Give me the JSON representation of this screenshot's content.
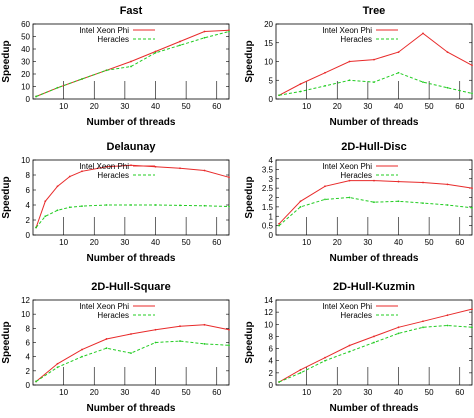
{
  "colors": {
    "intel": "#e82a2a",
    "heracles": "#22cc22",
    "axis": "#000000",
    "grid": "#000000"
  },
  "chart_data": [
    {
      "type": "line",
      "title": "Fast",
      "xlabel": "Number of threads",
      "ylabel": "Speedup",
      "xlim": [
        0,
        64
      ],
      "ylim": [
        0,
        60
      ],
      "xticks": [
        10,
        20,
        30,
        40,
        50,
        60
      ],
      "yticks": [
        0,
        10,
        20,
        30,
        40,
        50,
        60
      ],
      "grid": false,
      "legend": "top-left",
      "series": [
        {
          "name": "Intel Xeon Phi",
          "color": "#e82a2a",
          "x": [
            1,
            8,
            16,
            24,
            32,
            40,
            48,
            56,
            64
          ],
          "y": [
            2,
            9,
            16,
            23,
            30,
            38,
            46,
            54,
            55
          ]
        },
        {
          "name": "Heracles",
          "color": "#22cc22",
          "x": [
            1,
            8,
            16,
            24,
            32,
            40,
            48,
            56,
            64
          ],
          "y": [
            2,
            9,
            16,
            23,
            26,
            37,
            43,
            49,
            54
          ]
        }
      ]
    },
    {
      "type": "line",
      "title": "Tree",
      "xlabel": "Number of threads",
      "ylabel": "Speedup",
      "xlim": [
        0,
        64
      ],
      "ylim": [
        0,
        20
      ],
      "xticks": [
        10,
        20,
        30,
        40,
        50,
        60
      ],
      "yticks": [
        0,
        5,
        10,
        15,
        20
      ],
      "grid": false,
      "legend": "top-left",
      "series": [
        {
          "name": "Intel Xeon Phi",
          "color": "#e82a2a",
          "x": [
            1,
            8,
            16,
            24,
            32,
            40,
            48,
            56,
            64
          ],
          "y": [
            1,
            4,
            7,
            10,
            10.5,
            12.5,
            17.5,
            12.5,
            9
          ]
        },
        {
          "name": "Heracles",
          "color": "#22cc22",
          "x": [
            1,
            8,
            16,
            24,
            32,
            40,
            48,
            56,
            64
          ],
          "y": [
            1,
            2,
            3.5,
            5,
            4.5,
            7,
            4.5,
            3,
            1.5
          ]
        }
      ]
    },
    {
      "type": "line",
      "title": "Delaunay",
      "xlabel": "Number of threads",
      "ylabel": "Speedup",
      "xlim": [
        0,
        64
      ],
      "ylim": [
        0,
        10
      ],
      "xticks": [
        10,
        20,
        30,
        40,
        50,
        60
      ],
      "yticks": [
        0,
        2,
        4,
        6,
        8,
        10
      ],
      "grid": false,
      "legend": "top-left",
      "series": [
        {
          "name": "Intel Xeon Phi",
          "color": "#e82a2a",
          "x": [
            1,
            4,
            8,
            12,
            16,
            24,
            32,
            40,
            48,
            56,
            64
          ],
          "y": [
            1,
            4.5,
            6.5,
            7.8,
            8.5,
            9.1,
            9.3,
            9.1,
            8.9,
            8.6,
            7.7
          ]
        },
        {
          "name": "Heracles",
          "color": "#22cc22",
          "x": [
            1,
            4,
            8,
            12,
            16,
            24,
            32,
            40,
            48,
            56,
            64
          ],
          "y": [
            1,
            2.5,
            3.3,
            3.7,
            3.85,
            4,
            4,
            4,
            3.95,
            3.9,
            3.8
          ]
        }
      ]
    },
    {
      "type": "line",
      "title": "2D-Hull-Disc",
      "xlabel": "Number of threads",
      "ylabel": "Speedup",
      "xlim": [
        0,
        64
      ],
      "ylim": [
        0,
        4
      ],
      "xticks": [
        10,
        20,
        30,
        40,
        50,
        60
      ],
      "yticks": [
        0,
        0.5,
        1,
        1.5,
        2,
        2.5,
        3,
        3.5,
        4
      ],
      "grid": false,
      "legend": "top-left",
      "series": [
        {
          "name": "Intel Xeon Phi",
          "color": "#e82a2a",
          "x": [
            1,
            8,
            16,
            24,
            32,
            40,
            48,
            56,
            64
          ],
          "y": [
            0.6,
            1.8,
            2.6,
            2.9,
            2.9,
            2.85,
            2.8,
            2.7,
            2.5
          ]
        },
        {
          "name": "Heracles",
          "color": "#22cc22",
          "x": [
            1,
            8,
            16,
            24,
            32,
            40,
            48,
            56,
            64
          ],
          "y": [
            0.5,
            1.5,
            1.9,
            2,
            1.75,
            1.8,
            1.7,
            1.6,
            1.45
          ]
        }
      ]
    },
    {
      "type": "line",
      "title": "2D-Hull-Square",
      "xlabel": "Number of threads",
      "ylabel": "Speedup",
      "xlim": [
        0,
        64
      ],
      "ylim": [
        0,
        12
      ],
      "xticks": [
        10,
        20,
        30,
        40,
        50,
        60
      ],
      "yticks": [
        0,
        2,
        4,
        6,
        8,
        10,
        12
      ],
      "grid": false,
      "legend": "top-left",
      "series": [
        {
          "name": "Intel Xeon Phi",
          "color": "#e82a2a",
          "x": [
            1,
            8,
            16,
            24,
            32,
            40,
            48,
            56,
            64
          ],
          "y": [
            0.5,
            3,
            5,
            6.5,
            7.2,
            7.8,
            8.3,
            8.5,
            7.8
          ]
        },
        {
          "name": "Heracles",
          "color": "#22cc22",
          "x": [
            1,
            8,
            16,
            24,
            32,
            40,
            48,
            56,
            64
          ],
          "y": [
            0.5,
            2.5,
            4,
            5.2,
            4.5,
            6,
            6.2,
            5.8,
            5.6
          ]
        }
      ]
    },
    {
      "type": "line",
      "title": "2D-Hull-Kuzmin",
      "xlabel": "Number of threads",
      "ylabel": "Speedup",
      "xlim": [
        0,
        64
      ],
      "ylim": [
        0,
        14
      ],
      "xticks": [
        10,
        20,
        30,
        40,
        50,
        60
      ],
      "yticks": [
        0,
        2,
        4,
        6,
        8,
        10,
        12,
        14
      ],
      "grid": false,
      "legend": "top-left",
      "series": [
        {
          "name": "Intel Xeon Phi",
          "color": "#e82a2a",
          "x": [
            1,
            8,
            16,
            24,
            32,
            40,
            48,
            56,
            64
          ],
          "y": [
            0.5,
            2.5,
            4.5,
            6.5,
            8,
            9.5,
            10.5,
            11.5,
            12.5
          ]
        },
        {
          "name": "Heracles",
          "color": "#22cc22",
          "x": [
            1,
            8,
            16,
            24,
            32,
            40,
            48,
            56,
            64
          ],
          "y": [
            0.5,
            2,
            4,
            5.5,
            7,
            8.5,
            9.5,
            9.8,
            9.5
          ]
        }
      ]
    }
  ]
}
